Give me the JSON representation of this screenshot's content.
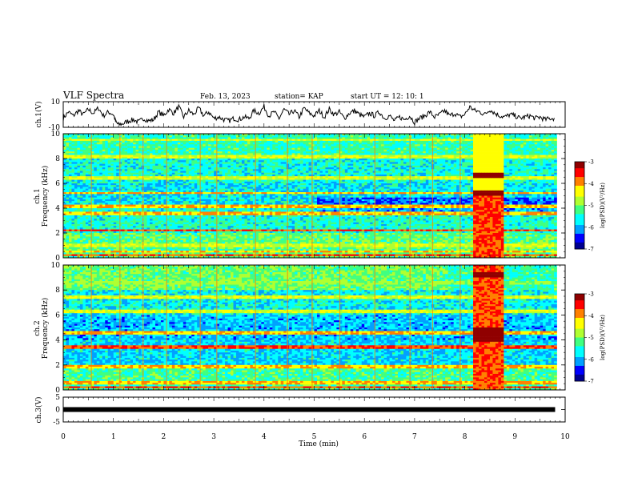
{
  "header": {
    "title": "VLF Spectra",
    "date": "Feb. 13, 2023",
    "station": "station= KAP",
    "start": "start  UT =   12: 10: 1"
  },
  "colors": {
    "colormap": [
      "#000090",
      "#0000ff",
      "#00a0ff",
      "#00ffff",
      "#40ff80",
      "#b0ff30",
      "#ffff00",
      "#ff8000",
      "#ff0000",
      "#900000"
    ],
    "trace": "#000000",
    "background": "#ffffff"
  },
  "chart_data": [
    {
      "type": "line",
      "panel": "ch1-voltage",
      "ylabel": "ch.1(V)",
      "ylim": [
        -10,
        10
      ],
      "yticks": [
        "10",
        "-10"
      ],
      "xlim": [
        0,
        10
      ],
      "description_of_series": "voltage trace oscillating roughly between -8 and +6 V",
      "series": [
        {
          "x": [
            0,
            0.1,
            0.2,
            0.3,
            0.4,
            0.5,
            0.6,
            0.7,
            0.8,
            0.9,
            1.0,
            1.05,
            1.1,
            1.2,
            1.3,
            1.4,
            1.5,
            1.6,
            1.7,
            1.8,
            1.9,
            2.0,
            2.1,
            2.2,
            2.3,
            2.4,
            2.5,
            2.6,
            2.7,
            2.8,
            2.9,
            3.0,
            3.1,
            3.2,
            3.3,
            3.4,
            3.5,
            3.6,
            3.7,
            3.8,
            3.9,
            4.0,
            4.1,
            4.2,
            4.3,
            4.4,
            4.5,
            4.6,
            4.7,
            4.8,
            4.9,
            5.0,
            5.1,
            5.2,
            5.3,
            5.4,
            5.5,
            5.6,
            5.7,
            5.8,
            5.9,
            6.0,
            6.1,
            6.2,
            6.3,
            6.4,
            6.5,
            6.6,
            6.7,
            6.8,
            6.9,
            7.0,
            7.1,
            7.2,
            7.3,
            7.4,
            7.5,
            7.6,
            7.7,
            7.8,
            7.9,
            8.0,
            8.1,
            8.2,
            8.3,
            8.4,
            8.5,
            8.6,
            8.7,
            8.8,
            8.9,
            9.0,
            9.1,
            9.2,
            9.3,
            9.4,
            9.5,
            9.6,
            9.7,
            9.8
          ],
          "y": [
            -3,
            2,
            -1,
            3,
            0,
            4,
            1,
            5,
            -1,
            2,
            0,
            -6,
            -8,
            -7,
            -5,
            -4,
            -6,
            -3,
            -5,
            -4,
            2,
            -1,
            4,
            1,
            6,
            -2,
            3,
            0,
            5,
            -1,
            2,
            -3,
            -2,
            -4,
            -5,
            -3,
            -4,
            -2,
            -3,
            3,
            1,
            6,
            -1,
            2,
            -3,
            4,
            0,
            3,
            -2,
            5,
            1,
            -1,
            3,
            -2,
            4,
            0,
            2,
            -3,
            1,
            3,
            0,
            -2,
            1,
            -1,
            2,
            -3,
            -1,
            -5,
            -2,
            -4,
            -1,
            -6,
            -3,
            -1,
            2,
            -2,
            0,
            3,
            -1,
            1,
            -2,
            0,
            6,
            3,
            2,
            0,
            4,
            1,
            -1,
            -2,
            0,
            -1,
            -3,
            -2,
            -1,
            -3,
            -2,
            -4,
            -3,
            -3
          ]
        }
      ]
    },
    {
      "type": "heatmap",
      "panel": "ch1-spectrogram",
      "ylabel": "ch.1\nFrequency  (kHz)",
      "ylim": [
        0,
        10
      ],
      "yticks": [
        "0",
        "2",
        "4",
        "6",
        "8",
        "10"
      ],
      "xlim": [
        0,
        10
      ],
      "colorbar": {
        "label": "log(PSD)(V²/Hz)",
        "range": [
          -7,
          -3
        ],
        "ticks": [
          "-3",
          "-4",
          "-5",
          "-6",
          "-7"
        ]
      }
    },
    {
      "type": "heatmap",
      "panel": "ch2-spectrogram",
      "ylabel": "ch.2\nFrequency  (kHz)",
      "ylim": [
        0,
        10
      ],
      "yticks": [
        "0",
        "2",
        "4",
        "6",
        "8",
        "10"
      ],
      "xlim": [
        0,
        10
      ],
      "colorbar": {
        "label": "log(PSD)(V²/Hz)",
        "range": [
          -7,
          -3
        ],
        "ticks": [
          "-3",
          "-4",
          "-5",
          "-6",
          "-7"
        ]
      }
    },
    {
      "type": "line",
      "panel": "ch3-voltage",
      "ylabel": "ch.3(V)",
      "ylim": [
        -5,
        5
      ],
      "yticks": [
        "5",
        "0",
        "-5"
      ],
      "xlim": [
        0,
        10
      ],
      "xlabel": "Time  (min)",
      "xticks": [
        "0",
        "1",
        "2",
        "3",
        "4",
        "5",
        "6",
        "7",
        "8",
        "9",
        "10"
      ],
      "series": [
        {
          "x": [
            0,
            9.8
          ],
          "y": [
            0,
            0
          ]
        }
      ]
    }
  ]
}
